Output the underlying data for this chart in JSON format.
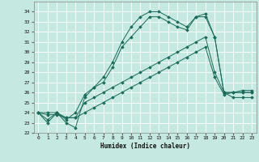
{
  "xlabel": "Humidex (Indice chaleur)",
  "ylabel": "",
  "bg_color": "#c5e8e0",
  "grid_color": "#ffffff",
  "line_color": "#1a6b5a",
  "xlim": [
    -0.5,
    23.5
  ],
  "ylim": [
    22,
    35
  ],
  "yticks": [
    22,
    23,
    24,
    25,
    26,
    27,
    28,
    29,
    30,
    31,
    32,
    33,
    34
  ],
  "xticks": [
    0,
    1,
    2,
    3,
    4,
    5,
    6,
    7,
    8,
    9,
    10,
    11,
    12,
    13,
    14,
    15,
    16,
    17,
    18,
    19,
    20,
    21,
    22,
    23
  ],
  "series": [
    [
      24.0,
      23.0,
      24.0,
      23.0,
      22.5,
      25.5,
      26.5,
      27.0,
      28.5,
      30.5,
      31.5,
      32.5,
      33.5,
      33.5,
      33.0,
      32.5,
      32.2,
      33.5,
      33.8,
      31.5,
      26.0,
      26.0,
      26.0,
      26.0
    ],
    [
      24.0,
      23.3,
      24.0,
      23.3,
      24.0,
      25.8,
      26.5,
      27.5,
      29.0,
      31.0,
      32.5,
      33.5,
      34.0,
      34.0,
      33.5,
      33.0,
      32.5,
      33.5,
      33.5,
      31.5,
      26.0,
      25.5,
      25.5,
      25.5
    ],
    [
      24.0,
      24.0,
      24.0,
      23.5,
      23.5,
      25.0,
      25.5,
      26.0,
      26.5,
      27.0,
      27.5,
      28.0,
      28.5,
      29.0,
      29.5,
      30.0,
      30.5,
      31.0,
      31.5,
      28.0,
      26.0,
      26.0,
      26.0,
      26.0
    ],
    [
      24.0,
      23.8,
      23.8,
      23.5,
      23.5,
      24.0,
      24.5,
      25.0,
      25.5,
      26.0,
      26.5,
      27.0,
      27.5,
      28.0,
      28.5,
      29.0,
      29.5,
      30.0,
      30.5,
      27.5,
      25.8,
      26.0,
      26.2,
      26.2
    ]
  ]
}
